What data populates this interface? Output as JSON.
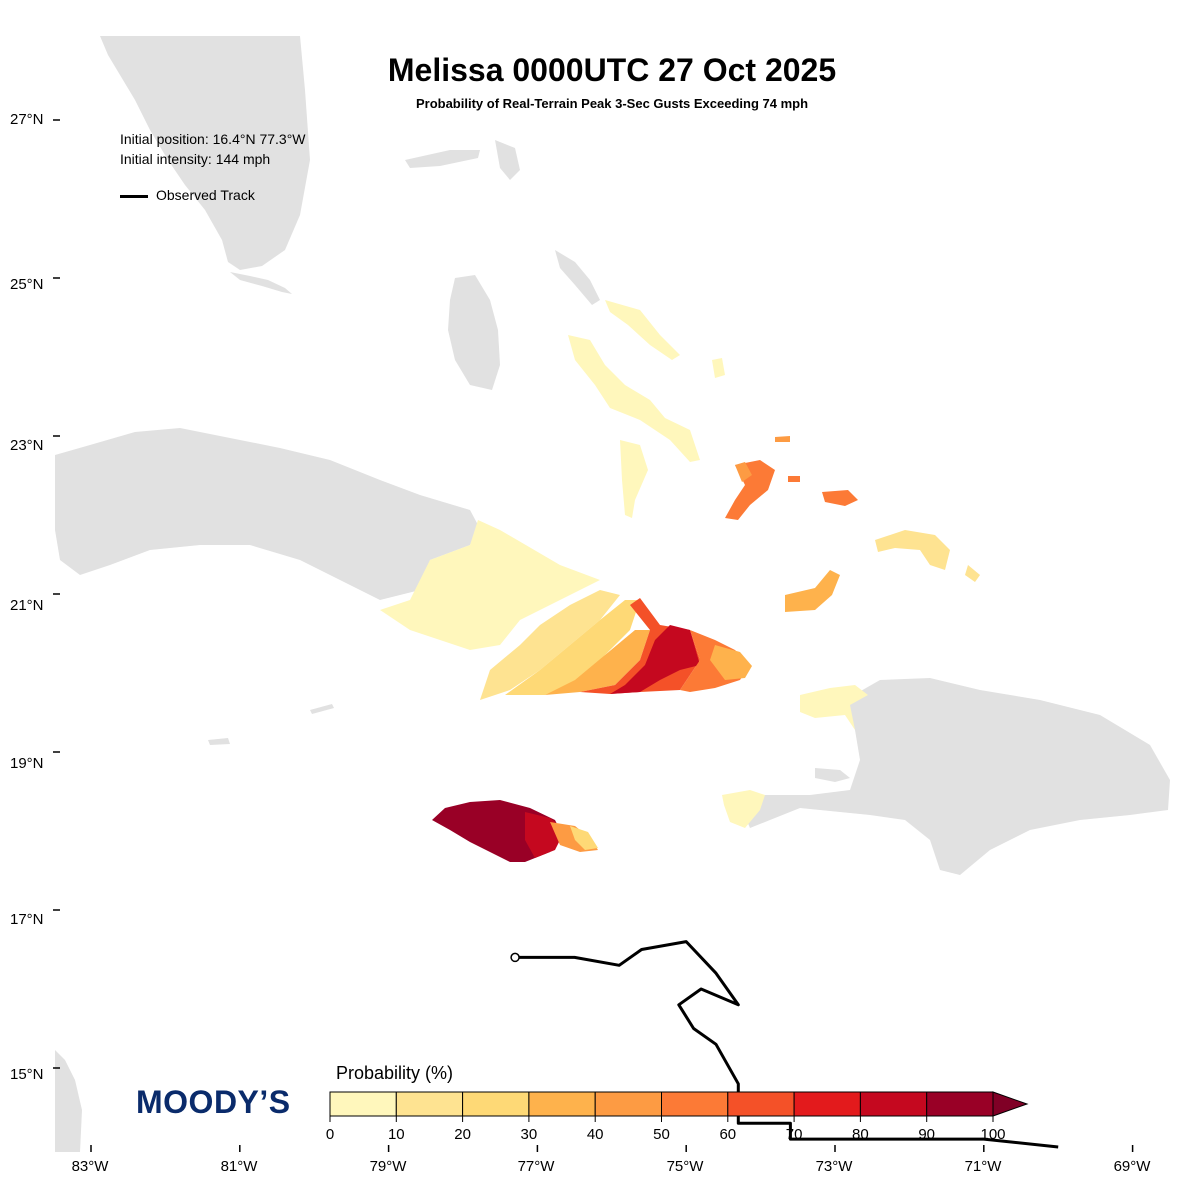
{
  "title": "Melissa 0000UTC 27 Oct 2025",
  "subtitle": "Probability of Real-Terrain Peak 3-Sec Gusts Exceeding 74 mph",
  "info": {
    "initial_position": "Initial position: 16.4°N 77.3°W",
    "initial_intensity": "Initial intensity: 144 mph",
    "legend_track": "Observed Track"
  },
  "logo": "MOODY’S",
  "lat_labels": [
    "27°N",
    "25°N",
    "23°N",
    "21°N",
    "19°N",
    "17°N",
    "15°N"
  ],
  "lon_labels": [
    "83°W",
    "81°W",
    "79°W",
    "77°W",
    "75°W",
    "73°W",
    "71°W",
    "69°W"
  ],
  "colorbar": {
    "title": "Probability (%)",
    "ticks": [
      "0",
      "10",
      "20",
      "30",
      "40",
      "50",
      "60",
      "70",
      "80",
      "90",
      "100"
    ],
    "colors": [
      "#fff7bc",
      "#fee391",
      "#fed976",
      "#feb24c",
      "#fd9b43",
      "#fc7a36",
      "#f45128",
      "#e31a1c",
      "#c5081f",
      "#990026"
    ],
    "extend_color": "#800026"
  },
  "colors": {
    "land": "#e1e1e1",
    "track": "#000000"
  },
  "track_start": {
    "lat": 16.4,
    "lon": -77.3
  },
  "observed_track": [
    [
      -77.3,
      16.4
    ],
    [
      -76.5,
      16.4
    ],
    [
      -75.9,
      16.3
    ],
    [
      -75.6,
      16.5
    ],
    [
      -75.0,
      16.6
    ],
    [
      -74.6,
      16.2
    ],
    [
      -74.3,
      15.8
    ],
    [
      -74.8,
      16.0
    ],
    [
      -75.1,
      15.8
    ],
    [
      -74.9,
      15.5
    ],
    [
      -74.6,
      15.3
    ],
    [
      -74.3,
      14.8
    ],
    [
      -74.3,
      14.3
    ],
    [
      -73.6,
      14.3
    ],
    [
      -73.6,
      14.1
    ],
    [
      -71.0,
      14.1
    ],
    [
      -70.0,
      14.0
    ]
  ]
}
